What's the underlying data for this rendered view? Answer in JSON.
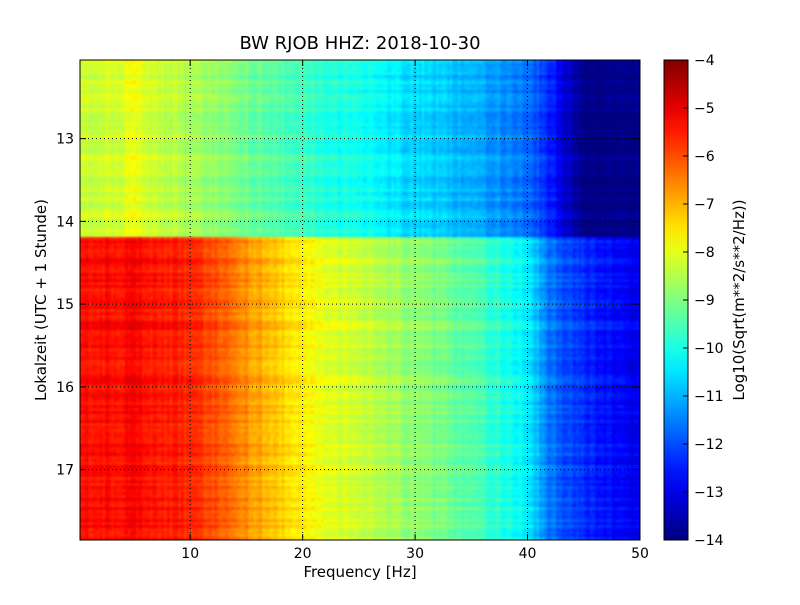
{
  "chart_data": {
    "type": "heatmap",
    "title": "BW RJOB HHZ: 2018-10-30",
    "xlabel": "Frequency [Hz]",
    "ylabel": "Lokalzeit (UTC + 1 Stunde)",
    "xlim": [
      0.2,
      50
    ],
    "ylim": [
      12.05,
      17.85
    ],
    "y_inverted": true,
    "grid": true,
    "x_ticks": [
      10,
      20,
      30,
      40,
      50
    ],
    "y_ticks": [
      13,
      14,
      15,
      16,
      17
    ],
    "x_tick_labels": [
      "10",
      "20",
      "30",
      "40",
      "50"
    ],
    "y_tick_labels": [
      "13",
      "14",
      "15",
      "16",
      "17"
    ],
    "colorbar": {
      "label": "Log10(Sqrt(m**2/s**2/Hz))",
      "colormap": "jet",
      "range": [
        -14,
        -4
      ],
      "ticks": [
        -4,
        -5,
        -6,
        -7,
        -8,
        -9,
        -10,
        -11,
        -12,
        -13,
        -14
      ],
      "tick_labels": [
        "−4",
        "−5",
        "−6",
        "−7",
        "−8",
        "−9",
        "−10",
        "−11",
        "−12",
        "−13",
        "−14"
      ]
    },
    "regime_change_hour": 14.18,
    "spectrum_profiles": {
      "frequency_hz": [
        0,
        2,
        5,
        10,
        15,
        20,
        25,
        30,
        35,
        40,
        42,
        45,
        48,
        50
      ],
      "before_change": [
        -8.3,
        -8.2,
        -8.0,
        -8.6,
        -9.1,
        -9.7,
        -10.1,
        -10.6,
        -11.0,
        -11.6,
        -12.4,
        -14.0,
        -14.0,
        -14.0
      ],
      "after_change": [
        -5.4,
        -5.3,
        -5.3,
        -5.6,
        -6.6,
        -7.7,
        -8.3,
        -8.8,
        -9.4,
        -10.3,
        -11.6,
        -12.3,
        -12.8,
        -13.0
      ]
    }
  }
}
